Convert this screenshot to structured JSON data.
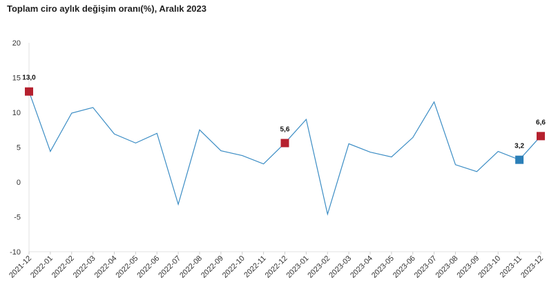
{
  "chart_data": {
    "type": "line",
    "title": "Toplam ciro aylık değişim oranı(%), Aralık 2023",
    "xlabel": "",
    "ylabel": "",
    "ylim": [
      -10,
      20
    ],
    "yticks": [
      20,
      15,
      10,
      5,
      0,
      -5,
      -10
    ],
    "grid": false,
    "line_color": "#3a8cc4",
    "categories": [
      "2021-12",
      "2022-01",
      "2022-02",
      "2022-03",
      "2022-04",
      "2022-05",
      "2022-06",
      "2022-07",
      "2022-08",
      "2022-09",
      "2022-10",
      "2022-11",
      "2022-12",
      "2023-01",
      "2023-02",
      "2023-03",
      "2023-04",
      "2023-05",
      "2023-06",
      "2023-07",
      "2023-08",
      "2023-09",
      "2023-10",
      "2023-11",
      "2023-12"
    ],
    "values": [
      13.0,
      4.4,
      9.9,
      10.7,
      6.9,
      5.6,
      7.0,
      -3.2,
      7.5,
      4.5,
      3.8,
      2.6,
      5.6,
      9.0,
      -4.6,
      5.5,
      4.3,
      3.6,
      6.4,
      11.5,
      2.5,
      1.5,
      4.4,
      3.2,
      6.6
    ],
    "highlights": [
      {
        "index": 0,
        "label": "13,0",
        "color": "#b5202e"
      },
      {
        "index": 12,
        "label": "5,6",
        "color": "#b5202e"
      },
      {
        "index": 23,
        "label": "3,2",
        "color": "#2b7fb8"
      },
      {
        "index": 24,
        "label": "6,6",
        "color": "#b5202e"
      }
    ]
  }
}
